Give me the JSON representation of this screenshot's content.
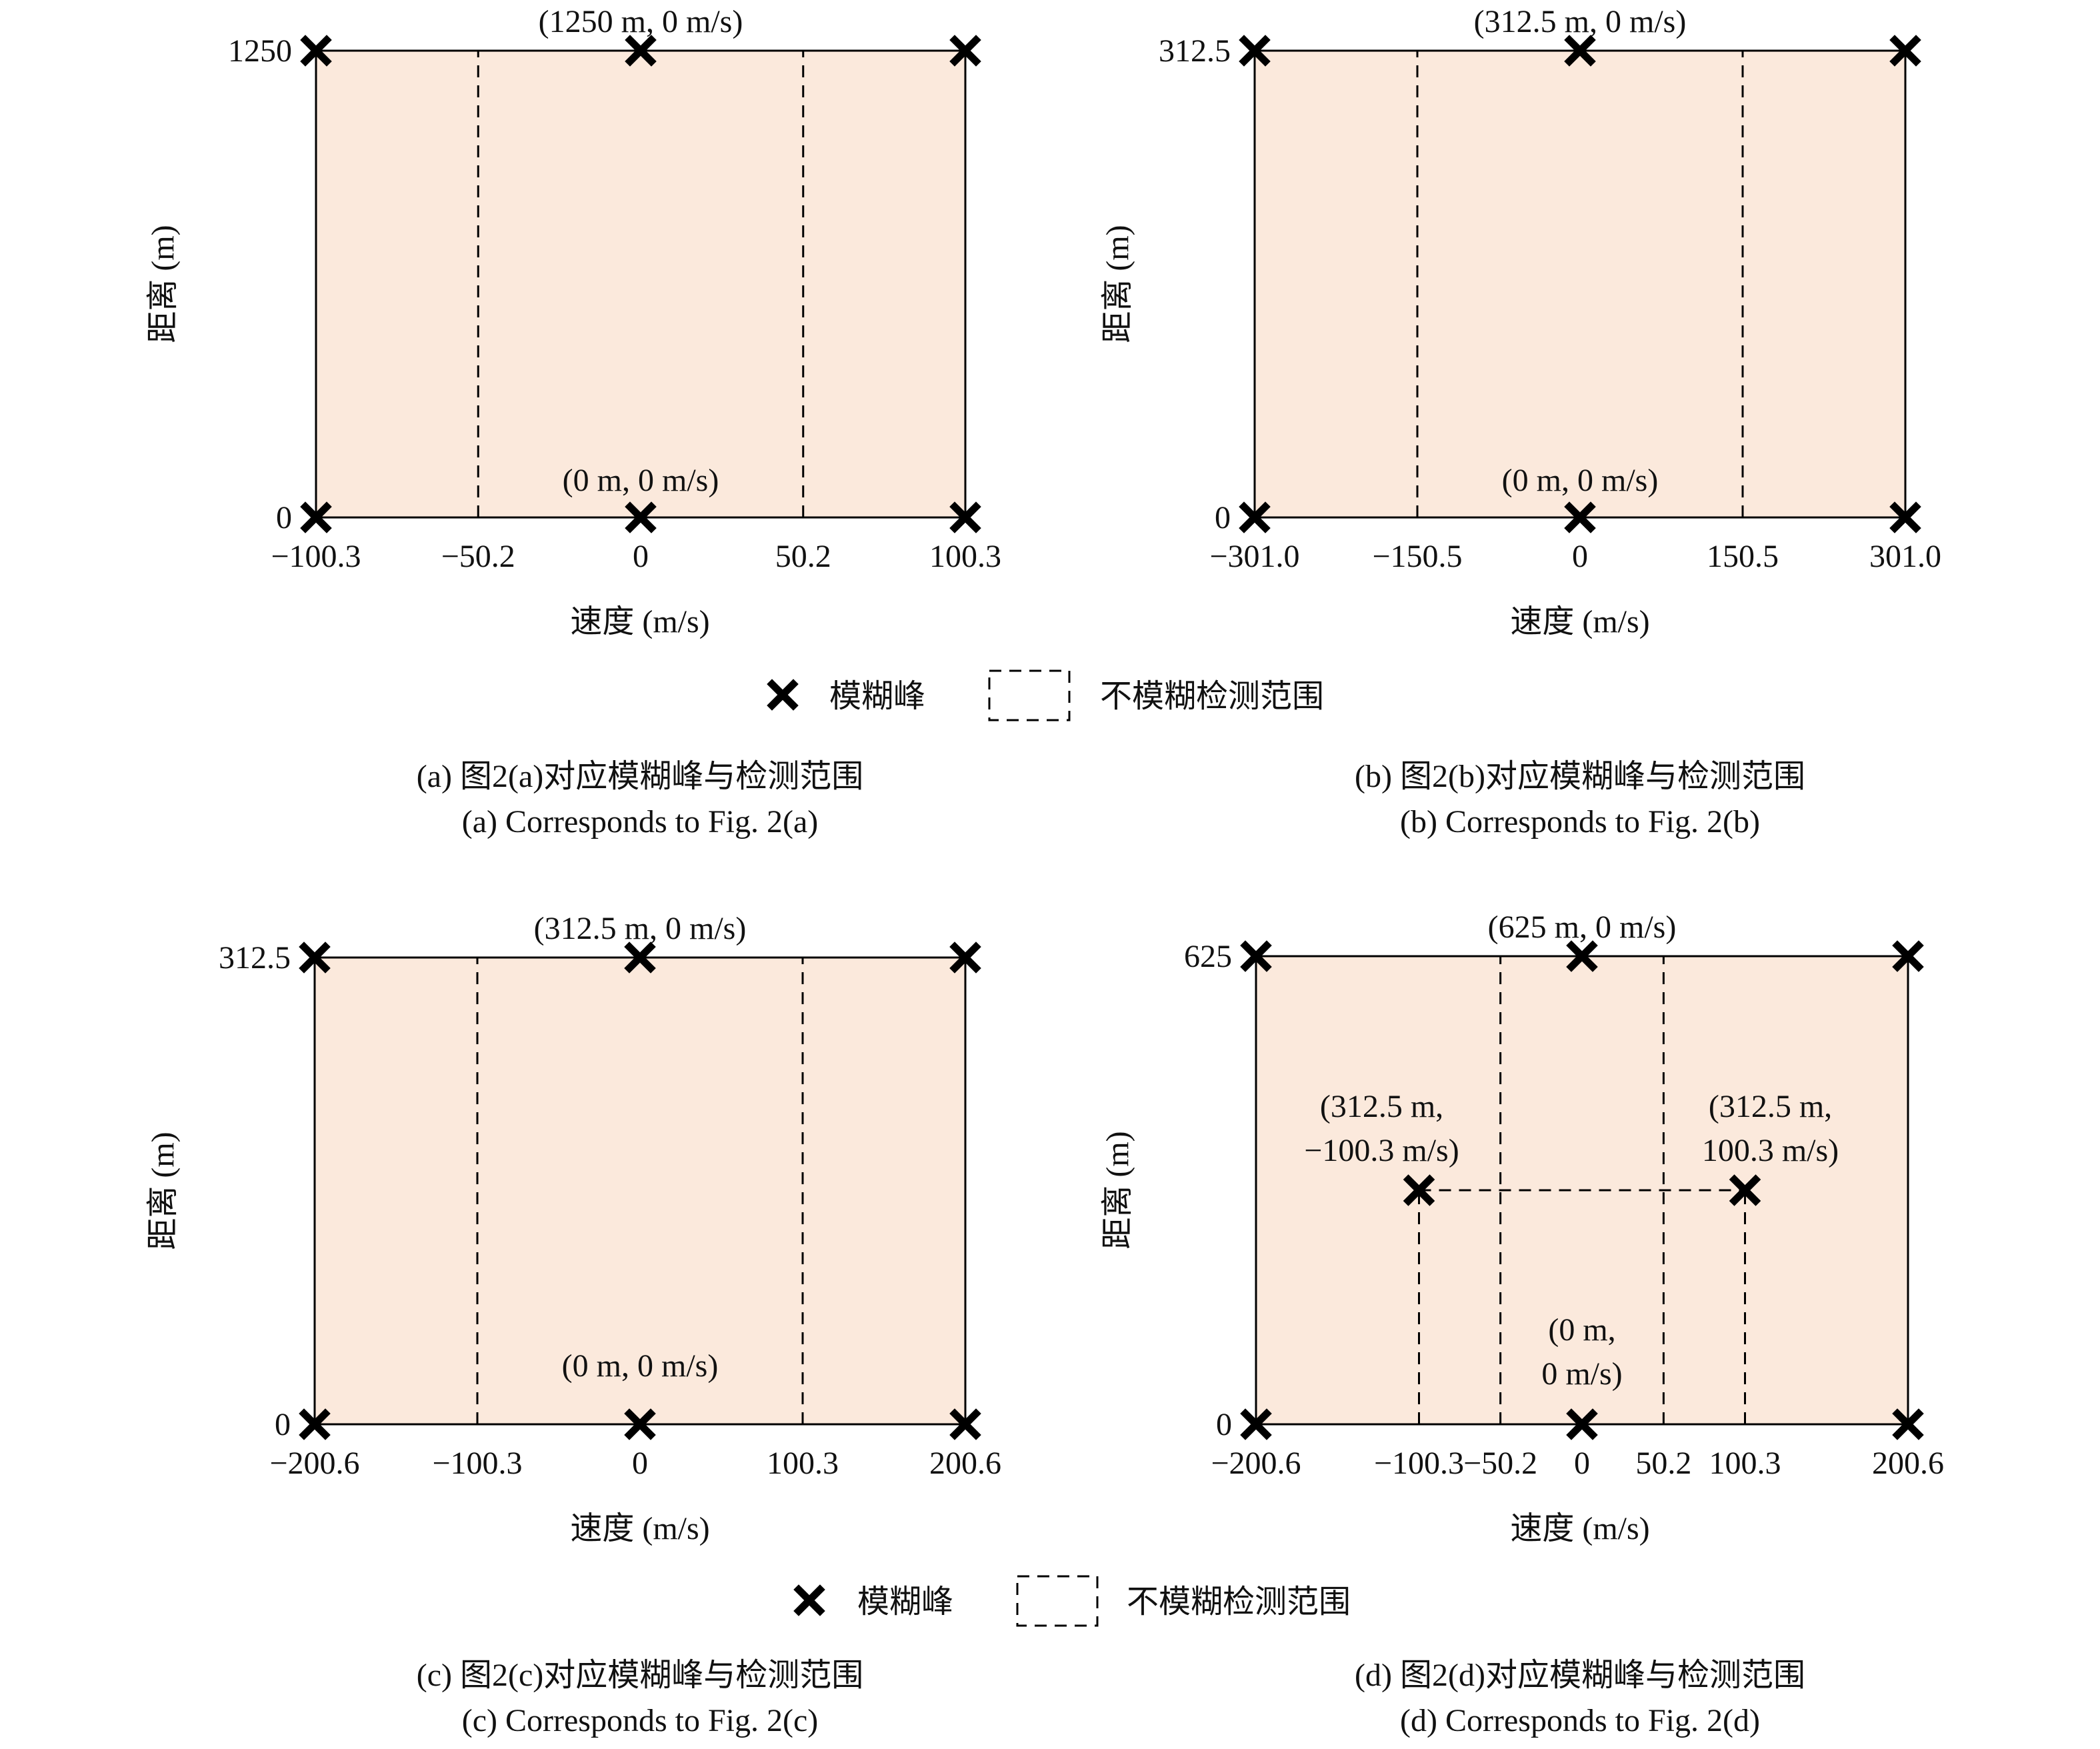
{
  "fill_color": "#FBE9DC",
  "marker": "x-cross",
  "chart_data": [
    {
      "type": "scatter",
      "xlabel": "速度 (m/s)",
      "ylabel": "距离 (m)",
      "xlim": [
        -100.3,
        100.3
      ],
      "ylim": [
        0,
        1250
      ],
      "xticks": [
        -100.3,
        -50.2,
        0,
        50.2,
        100.3
      ],
      "xtick_labels": [
        "−100.3",
        "−50.2",
        "0",
        "50.2",
        "100.3"
      ],
      "yticks": [
        0,
        1250
      ],
      "ytick_labels": [
        "0",
        "1250"
      ],
      "peaks": [
        [
          -100.3,
          0
        ],
        [
          0,
          0
        ],
        [
          100.3,
          0
        ],
        [
          -100.3,
          1250
        ],
        [
          0,
          1250
        ],
        [
          100.3,
          1250
        ]
      ],
      "annotations": [
        {
          "at": [
            0,
            1250
          ],
          "lines": [
            "(1250 m, 0 m/s)"
          ]
        },
        {
          "at": [
            0,
            0
          ],
          "lines": [
            "(0 m, 0 m/s)"
          ]
        }
      ],
      "detection_segments": [
        [
          [
            -50.2,
            0
          ],
          [
            -50.2,
            1250
          ]
        ],
        [
          [
            50.2,
            0
          ],
          [
            50.2,
            1250
          ]
        ],
        [
          [
            -50.2,
            0
          ],
          [
            50.2,
            0
          ]
        ]
      ],
      "caption": [
        "(a) 图2(a)对应模糊峰与检测范围",
        "(a) Corresponds to Fig. 2(a)"
      ]
    },
    {
      "type": "scatter",
      "xlabel": "速度 (m/s)",
      "ylabel": "距离 (m)",
      "xlim": [
        -301.0,
        301.0
      ],
      "ylim": [
        0,
        312.5
      ],
      "xticks": [
        -301.0,
        -150.5,
        0,
        150.5,
        301.0
      ],
      "xtick_labels": [
        "−301.0",
        "−150.5",
        "0",
        "150.5",
        "301.0"
      ],
      "yticks": [
        0,
        312.5
      ],
      "ytick_labels": [
        "0",
        "312.5"
      ],
      "peaks": [
        [
          -301,
          0
        ],
        [
          0,
          0
        ],
        [
          301,
          0
        ],
        [
          -301,
          312.5
        ],
        [
          0,
          312.5
        ],
        [
          301,
          312.5
        ]
      ],
      "annotations": [
        {
          "at": [
            0,
            312.5
          ],
          "lines": [
            "(312.5 m, 0 m/s)"
          ]
        },
        {
          "at": [
            0,
            0
          ],
          "lines": [
            "(0 m, 0 m/s)"
          ]
        }
      ],
      "detection_segments": [
        [
          [
            -150.5,
            0
          ],
          [
            -150.5,
            312.5
          ]
        ],
        [
          [
            150.5,
            0
          ],
          [
            150.5,
            312.5
          ]
        ],
        [
          [
            -150.5,
            0
          ],
          [
            150.5,
            0
          ]
        ]
      ],
      "caption": [
        "(b) 图2(b)对应模糊峰与检测范围",
        "(b) Corresponds to Fig. 2(b)"
      ]
    },
    {
      "type": "scatter",
      "xlabel": "速度 (m/s)",
      "ylabel": "距离 (m)",
      "xlim": [
        -200.6,
        200.6
      ],
      "ylim": [
        0,
        312.5
      ],
      "xticks": [
        -200.6,
        -100.3,
        0,
        100.3,
        200.6
      ],
      "xtick_labels": [
        "−200.6",
        "−100.3",
        "0",
        "100.3",
        "200.6"
      ],
      "yticks": [
        0,
        312.5
      ],
      "ytick_labels": [
        "0",
        "312.5"
      ],
      "peaks": [
        [
          -200.6,
          0
        ],
        [
          0,
          0
        ],
        [
          200.6,
          0
        ],
        [
          -200.6,
          312.5
        ],
        [
          0,
          312.5
        ],
        [
          200.6,
          312.5
        ]
      ],
      "annotations": [
        {
          "at": [
            0,
            312.5
          ],
          "lines": [
            "(312.5 m, 0 m/s)"
          ]
        },
        {
          "at": [
            0,
            0
          ],
          "lines": [
            "(0 m, 0 m/s)"
          ]
        }
      ],
      "detection_segments": [
        [
          [
            -100.3,
            0
          ],
          [
            -100.3,
            312.5
          ]
        ],
        [
          [
            100.3,
            0
          ],
          [
            100.3,
            312.5
          ]
        ],
        [
          [
            -100.3,
            0
          ],
          [
            100.3,
            0
          ]
        ]
      ],
      "caption": [
        "(c) 图2(c)对应模糊峰与检测范围",
        "(c) Corresponds to Fig. 2(c)"
      ]
    },
    {
      "type": "scatter",
      "xlabel": "速度 (m/s)",
      "ylabel": "距离 (m)",
      "xlim": [
        -200.6,
        200.6
      ],
      "ylim": [
        0,
        625
      ],
      "xticks": [
        -200.6,
        -100.3,
        -50.2,
        0,
        50.2,
        100.3,
        200.6
      ],
      "xtick_labels": [
        "−200.6",
        "−100.3",
        "−50.2",
        "0",
        "50.2",
        "100.3",
        "200.6"
      ],
      "yticks": [
        0,
        625
      ],
      "ytick_labels": [
        "0",
        "625"
      ],
      "peaks": [
        [
          -200.6,
          0
        ],
        [
          0,
          0
        ],
        [
          200.6,
          0
        ],
        [
          -200.6,
          625
        ],
        [
          0,
          625
        ],
        [
          200.6,
          625
        ],
        [
          -100.3,
          312.5
        ],
        [
          100.3,
          312.5
        ]
      ],
      "annotations": [
        {
          "at": [
            0,
            625
          ],
          "lines": [
            "(625 m, 0 m/s)"
          ]
        },
        {
          "at": [
            -100.3,
            312.5
          ],
          "lines": [
            "(312.5 m,",
            "−100.3 m/s)"
          ]
        },
        {
          "at": [
            100.3,
            312.5
          ],
          "lines": [
            "(312.5 m,",
            "100.3 m/s)"
          ]
        },
        {
          "at": [
            0,
            0
          ],
          "lines": [
            "(0 m,",
            "0 m/s)"
          ]
        }
      ],
      "detection_segments": [
        [
          [
            -50.2,
            0
          ],
          [
            -50.2,
            625
          ]
        ],
        [
          [
            50.2,
            0
          ],
          [
            50.2,
            625
          ]
        ],
        [
          [
            -50.2,
            625
          ],
          [
            50.2,
            625
          ]
        ],
        [
          [
            -100.3,
            312.5
          ],
          [
            100.3,
            312.5
          ]
        ],
        [
          [
            -100.3,
            0
          ],
          [
            -100.3,
            312.5
          ]
        ],
        [
          [
            100.3,
            0
          ],
          [
            100.3,
            312.5
          ]
        ],
        [
          [
            -100.3,
            0
          ],
          [
            100.3,
            0
          ]
        ]
      ],
      "caption": [
        "(d) 图2(d)对应模糊峰与检测范围",
        "(d) Corresponds to Fig. 2(d)"
      ]
    }
  ],
  "legends": [
    {
      "peak_label": "模糊峰",
      "region_label": "不模糊检测范围"
    },
    {
      "peak_label": "模糊峰",
      "region_label": "不模糊检测范围"
    }
  ]
}
